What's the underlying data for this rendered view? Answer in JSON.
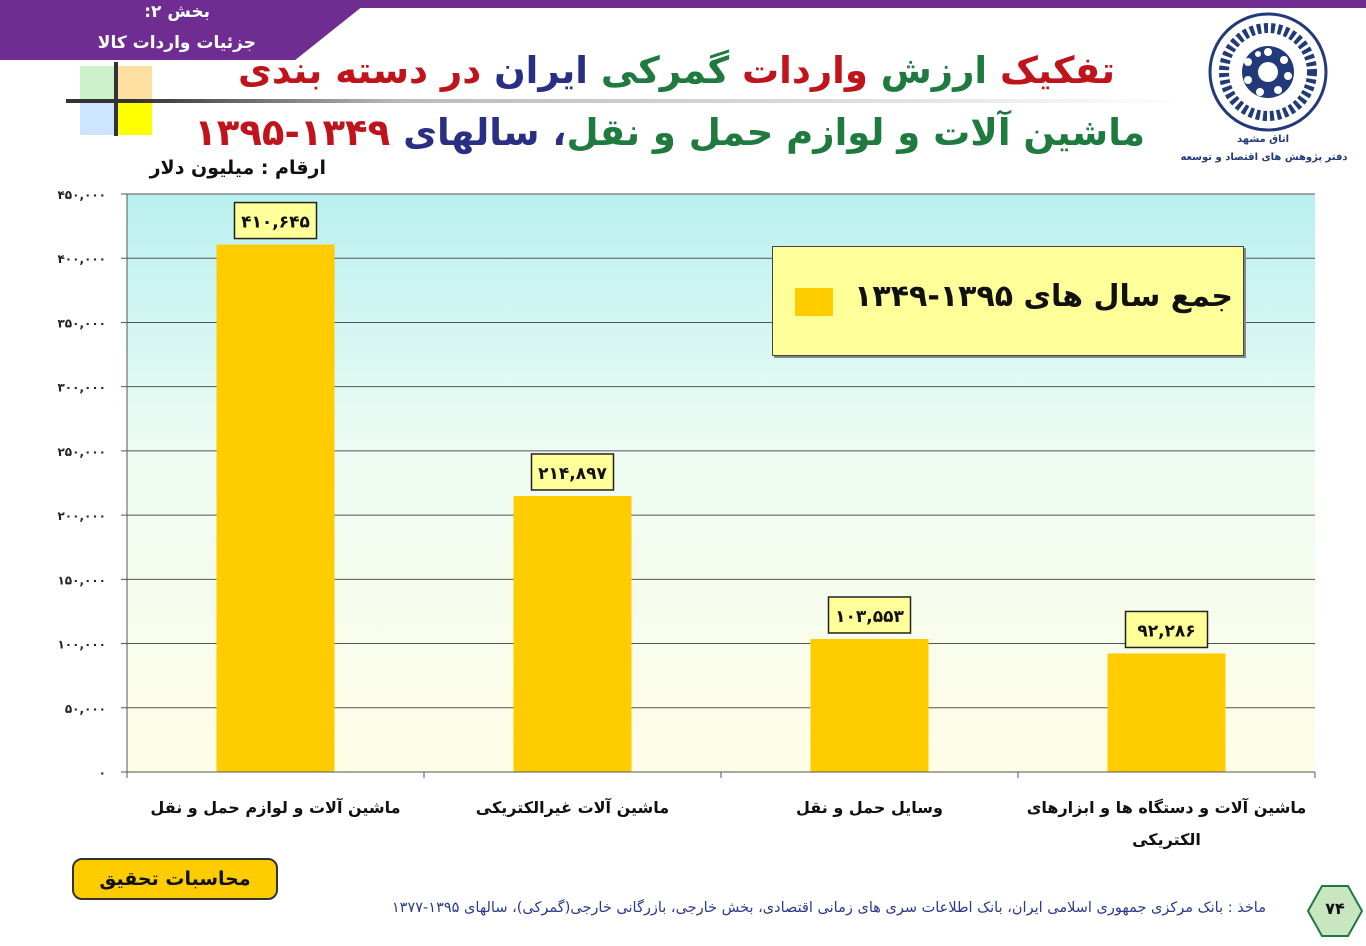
{
  "section": {
    "line1": "بخش ۲:",
    "line2": "جزئیات واردات کالا"
  },
  "title": {
    "line1": [
      {
        "text": "تفکیک ",
        "color": "red"
      },
      {
        "text": "ارزش ",
        "color": "green"
      },
      {
        "text": "واردات ",
        "color": "red"
      },
      {
        "text": "گمرکی  ",
        "color": "green"
      },
      {
        "text": "ایران ",
        "color": "blue"
      },
      {
        "text": "در دسته بندی",
        "color": "red"
      }
    ],
    "line2": [
      {
        "text": "ماشین آلات و لوازم حمل و نقل",
        "color": "green"
      },
      {
        "text": "، سالهای ",
        "color": "blue"
      },
      {
        "text": "۱۳۴۹-۱۳۹۵",
        "color": "red"
      }
    ]
  },
  "units_label": "ارقام : میلیون دلار",
  "logo": {
    "line1": "اتاق مشهد",
    "line2": "دفتر پژوهش های اقتصاد و توسعه"
  },
  "legend": {
    "label": "جمع سال های ۱۳۹۵-۱۳۴۹",
    "color": "#ffcc00"
  },
  "chart_data": {
    "type": "bar",
    "categories": [
      "ماشین آلات و لوازم حمل و نقل",
      "ماشین آلات غیرالکتریکی",
      "وسایل حمل و نقل",
      "ماشین آلات و دستگاه ها و ابزارهای الکتریکی"
    ],
    "category_lines": [
      [
        "ماشین آلات و لوازم حمل و نقل"
      ],
      [
        "ماشین آلات غیرالکتریکی"
      ],
      [
        "وسایل حمل و نقل"
      ],
      [
        "ماشین آلات و دستگاه ها و ابزارهای",
        "الکتریکی"
      ]
    ],
    "series": [
      {
        "name": "جمع سال های ۱۳۹۵-۱۳۴۹",
        "values": [
          410645,
          214897,
          103553,
          92286
        ]
      }
    ],
    "data_labels": [
      "۴۱۰,۶۴۵",
      "۲۱۴,۸۹۷",
      "۱۰۳,۵۵۳",
      "۹۲,۲۸۶"
    ],
    "ylim": [
      0,
      450000
    ],
    "yticks": [
      0,
      50000,
      100000,
      150000,
      200000,
      250000,
      300000,
      350000,
      400000,
      450000
    ],
    "ytick_labels": [
      "۰",
      "۵۰,۰۰۰",
      "۱۰۰,۰۰۰",
      "۱۵۰,۰۰۰",
      "۲۰۰,۰۰۰",
      "۲۵۰,۰۰۰",
      "۳۰۰,۰۰۰",
      "۳۵۰,۰۰۰",
      "۴۰۰,۰۰۰",
      "۴۵۰,۰۰۰"
    ],
    "grid": true,
    "legend_position": "top-right"
  },
  "calc_label": "محاسبات تحقیق",
  "source_text": "ماخذ : بانک مرکزی جمهوری اسلامی ایران، بانک اطلاعات سری های زمانی اقتصادی، بخش خارجی، بازرگانی خارجی(گمرکی)، سالهای ۱۳۹۵-۱۳۷۷",
  "page_number": "۷۴",
  "colors": {
    "red": "#c0141c",
    "green": "#1e7a3e",
    "blue": "#2a2f86",
    "bar": "#ffcc00",
    "header_purple": "#6f2c91"
  }
}
